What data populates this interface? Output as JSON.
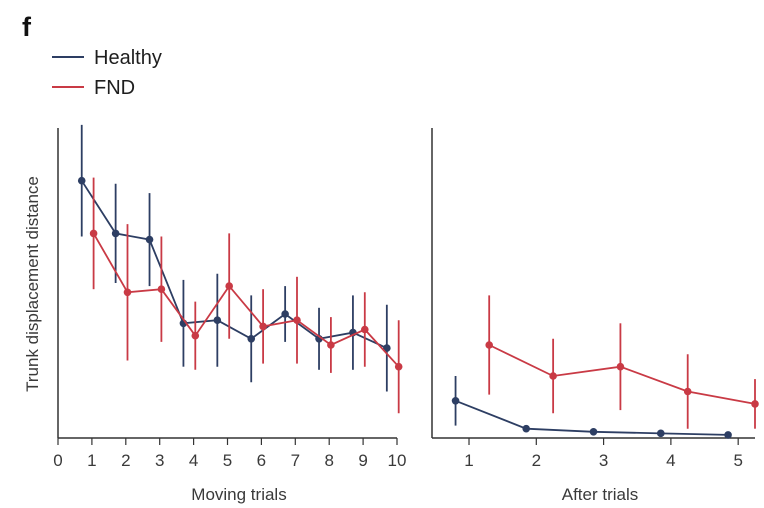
{
  "panel_label": "f",
  "colors": {
    "healthy": "#2d3e63",
    "fnd": "#c93a45",
    "axis": "#333333"
  },
  "chart_data": [
    {
      "type": "line",
      "panel": "moving",
      "xlabel": "Moving trials",
      "ylabel": "Trunk displacement distance",
      "xlim": [
        0,
        10
      ],
      "xticks": [
        0,
        1,
        2,
        3,
        4,
        5,
        6,
        7,
        8,
        9,
        10
      ],
      "ylim": [
        0,
        1
      ],
      "y_tick_labels_shown": false,
      "legend": {
        "placement": "top-left",
        "entries": [
          "Healthy",
          "FND"
        ]
      },
      "series": [
        {
          "name": "Healthy",
          "color": "#2d3e63",
          "x": [
            0.7,
            1.7,
            2.7,
            3.7,
            4.7,
            5.7,
            6.7,
            7.7,
            8.7,
            9.7
          ],
          "y": [
            0.83,
            0.66,
            0.64,
            0.37,
            0.38,
            0.32,
            0.4,
            0.32,
            0.34,
            0.29
          ],
          "err": [
            0.18,
            0.16,
            0.15,
            0.14,
            0.15,
            0.14,
            0.09,
            0.1,
            0.12,
            0.14
          ]
        },
        {
          "name": "FND",
          "color": "#c93a45",
          "x": [
            1.05,
            2.05,
            3.05,
            4.05,
            5.05,
            6.05,
            7.05,
            8.05,
            9.05,
            10.05
          ],
          "y": [
            0.66,
            0.47,
            0.48,
            0.33,
            0.49,
            0.36,
            0.38,
            0.3,
            0.35,
            0.23
          ],
          "err": [
            0.18,
            0.22,
            0.17,
            0.11,
            0.17,
            0.12,
            0.14,
            0.09,
            0.12,
            0.15
          ]
        }
      ]
    },
    {
      "type": "line",
      "panel": "after",
      "xlabel": "After trials",
      "ylabel": "",
      "xlim": [
        0.45,
        5.25
      ],
      "xticks": [
        1,
        2,
        3,
        4,
        5
      ],
      "ylim": [
        0,
        1
      ],
      "y_tick_labels_shown": false,
      "series": [
        {
          "name": "Healthy",
          "color": "#2d3e63",
          "x": [
            0.8,
            1.85,
            2.85,
            3.85,
            4.85
          ],
          "y": [
            0.12,
            0.03,
            0.02,
            0.015,
            0.01
          ],
          "err": [
            0.08,
            0.01,
            0.01,
            0.01,
            0.005
          ]
        },
        {
          "name": "FND",
          "color": "#c93a45",
          "x": [
            1.3,
            2.25,
            3.25,
            4.25,
            5.25
          ],
          "y": [
            0.3,
            0.2,
            0.23,
            0.15,
            0.11
          ],
          "err": [
            0.16,
            0.12,
            0.14,
            0.12,
            0.08
          ]
        }
      ]
    }
  ]
}
